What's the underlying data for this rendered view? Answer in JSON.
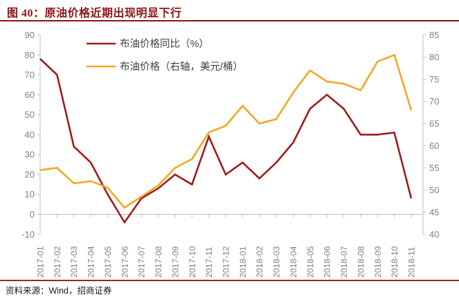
{
  "header": {
    "title": "图 40：原油价格近期出现明显下行"
  },
  "footer": {
    "source_label": "资料来源：Wind，招商证券"
  },
  "colors": {
    "title_red": "#8B1414",
    "series_yoy_red": "#9E1B1B",
    "series_price_orange": "#F5A623",
    "axis_line_gray": "#BFBFBF",
    "axis_text_gray": "#7F7F7F",
    "legend_text": "#3f3f3f"
  },
  "chart_data": {
    "type": "line",
    "title": "图 40：原油价格近期出现明显下行",
    "grid": false,
    "legend_position": "top-left-inside",
    "categories": [
      "2017-01",
      "2017-02",
      "2017-03",
      "2017-04",
      "2017-05",
      "2017-06",
      "2017-07",
      "2017-08",
      "2017-09",
      "2017-10",
      "2017-11",
      "2017-12",
      "2018-01",
      "2018-02",
      "2018-03",
      "2018-04",
      "2018-05",
      "2018-06",
      "2018-07",
      "2018-08",
      "2018-09",
      "2018-10",
      "2018-11"
    ],
    "series": [
      {
        "name": "布油价格同比（%）",
        "axis": "left",
        "color": "#9E1B1B",
        "values": [
          78,
          70,
          34,
          26,
          10,
          -4,
          8,
          13,
          20,
          15,
          39,
          20,
          26,
          18,
          26,
          36,
          53,
          60,
          53,
          40,
          40,
          41,
          8
        ]
      },
      {
        "name": "布油价格（右轴，美元/桶）",
        "axis": "right",
        "color": "#F5A623",
        "values": [
          54.5,
          55,
          51.5,
          52,
          50.5,
          46,
          48.5,
          51,
          55,
          57,
          63,
          64.5,
          69,
          65,
          66,
          72,
          77,
          74.5,
          74,
          72.5,
          79,
          80.5,
          68
        ]
      }
    ],
    "left_axis": {
      "min": -10,
      "max": 90,
      "step": 10,
      "ticks": [
        90,
        80,
        70,
        60,
        50,
        40,
        30,
        20,
        10,
        0,
        -10
      ]
    },
    "right_axis": {
      "min": 40,
      "max": 85,
      "step": 5,
      "ticks": [
        85,
        80,
        75,
        70,
        65,
        60,
        55,
        50,
        45,
        40
      ]
    }
  }
}
